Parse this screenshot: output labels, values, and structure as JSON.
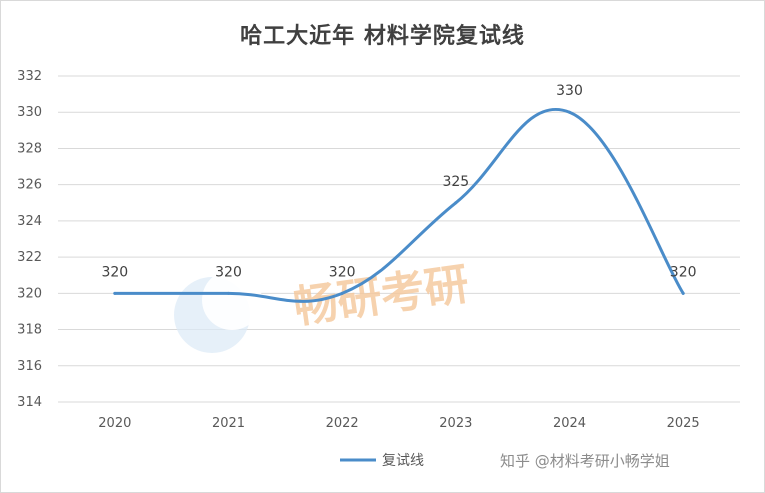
{
  "chart_data": {
    "type": "line",
    "title": "哈工大近年 材料学院复试线",
    "categories": [
      "2020",
      "2021",
      "2022",
      "2023",
      "2024",
      "2025"
    ],
    "series": [
      {
        "name": "复试线",
        "values": [
          320,
          320,
          320,
          325,
          330,
          320
        ],
        "color": "#4a8cc9"
      }
    ],
    "y_ticks": [
      "314",
      "316",
      "318",
      "320",
      "322",
      "324",
      "326",
      "328",
      "330",
      "332"
    ],
    "ylim": [
      314,
      332
    ],
    "grid": true,
    "legend": "bottom-center",
    "smooth": true
  },
  "watermark": {
    "logo_text": "畅研考研",
    "credit": "知乎 @材料考研小畅学姐"
  }
}
